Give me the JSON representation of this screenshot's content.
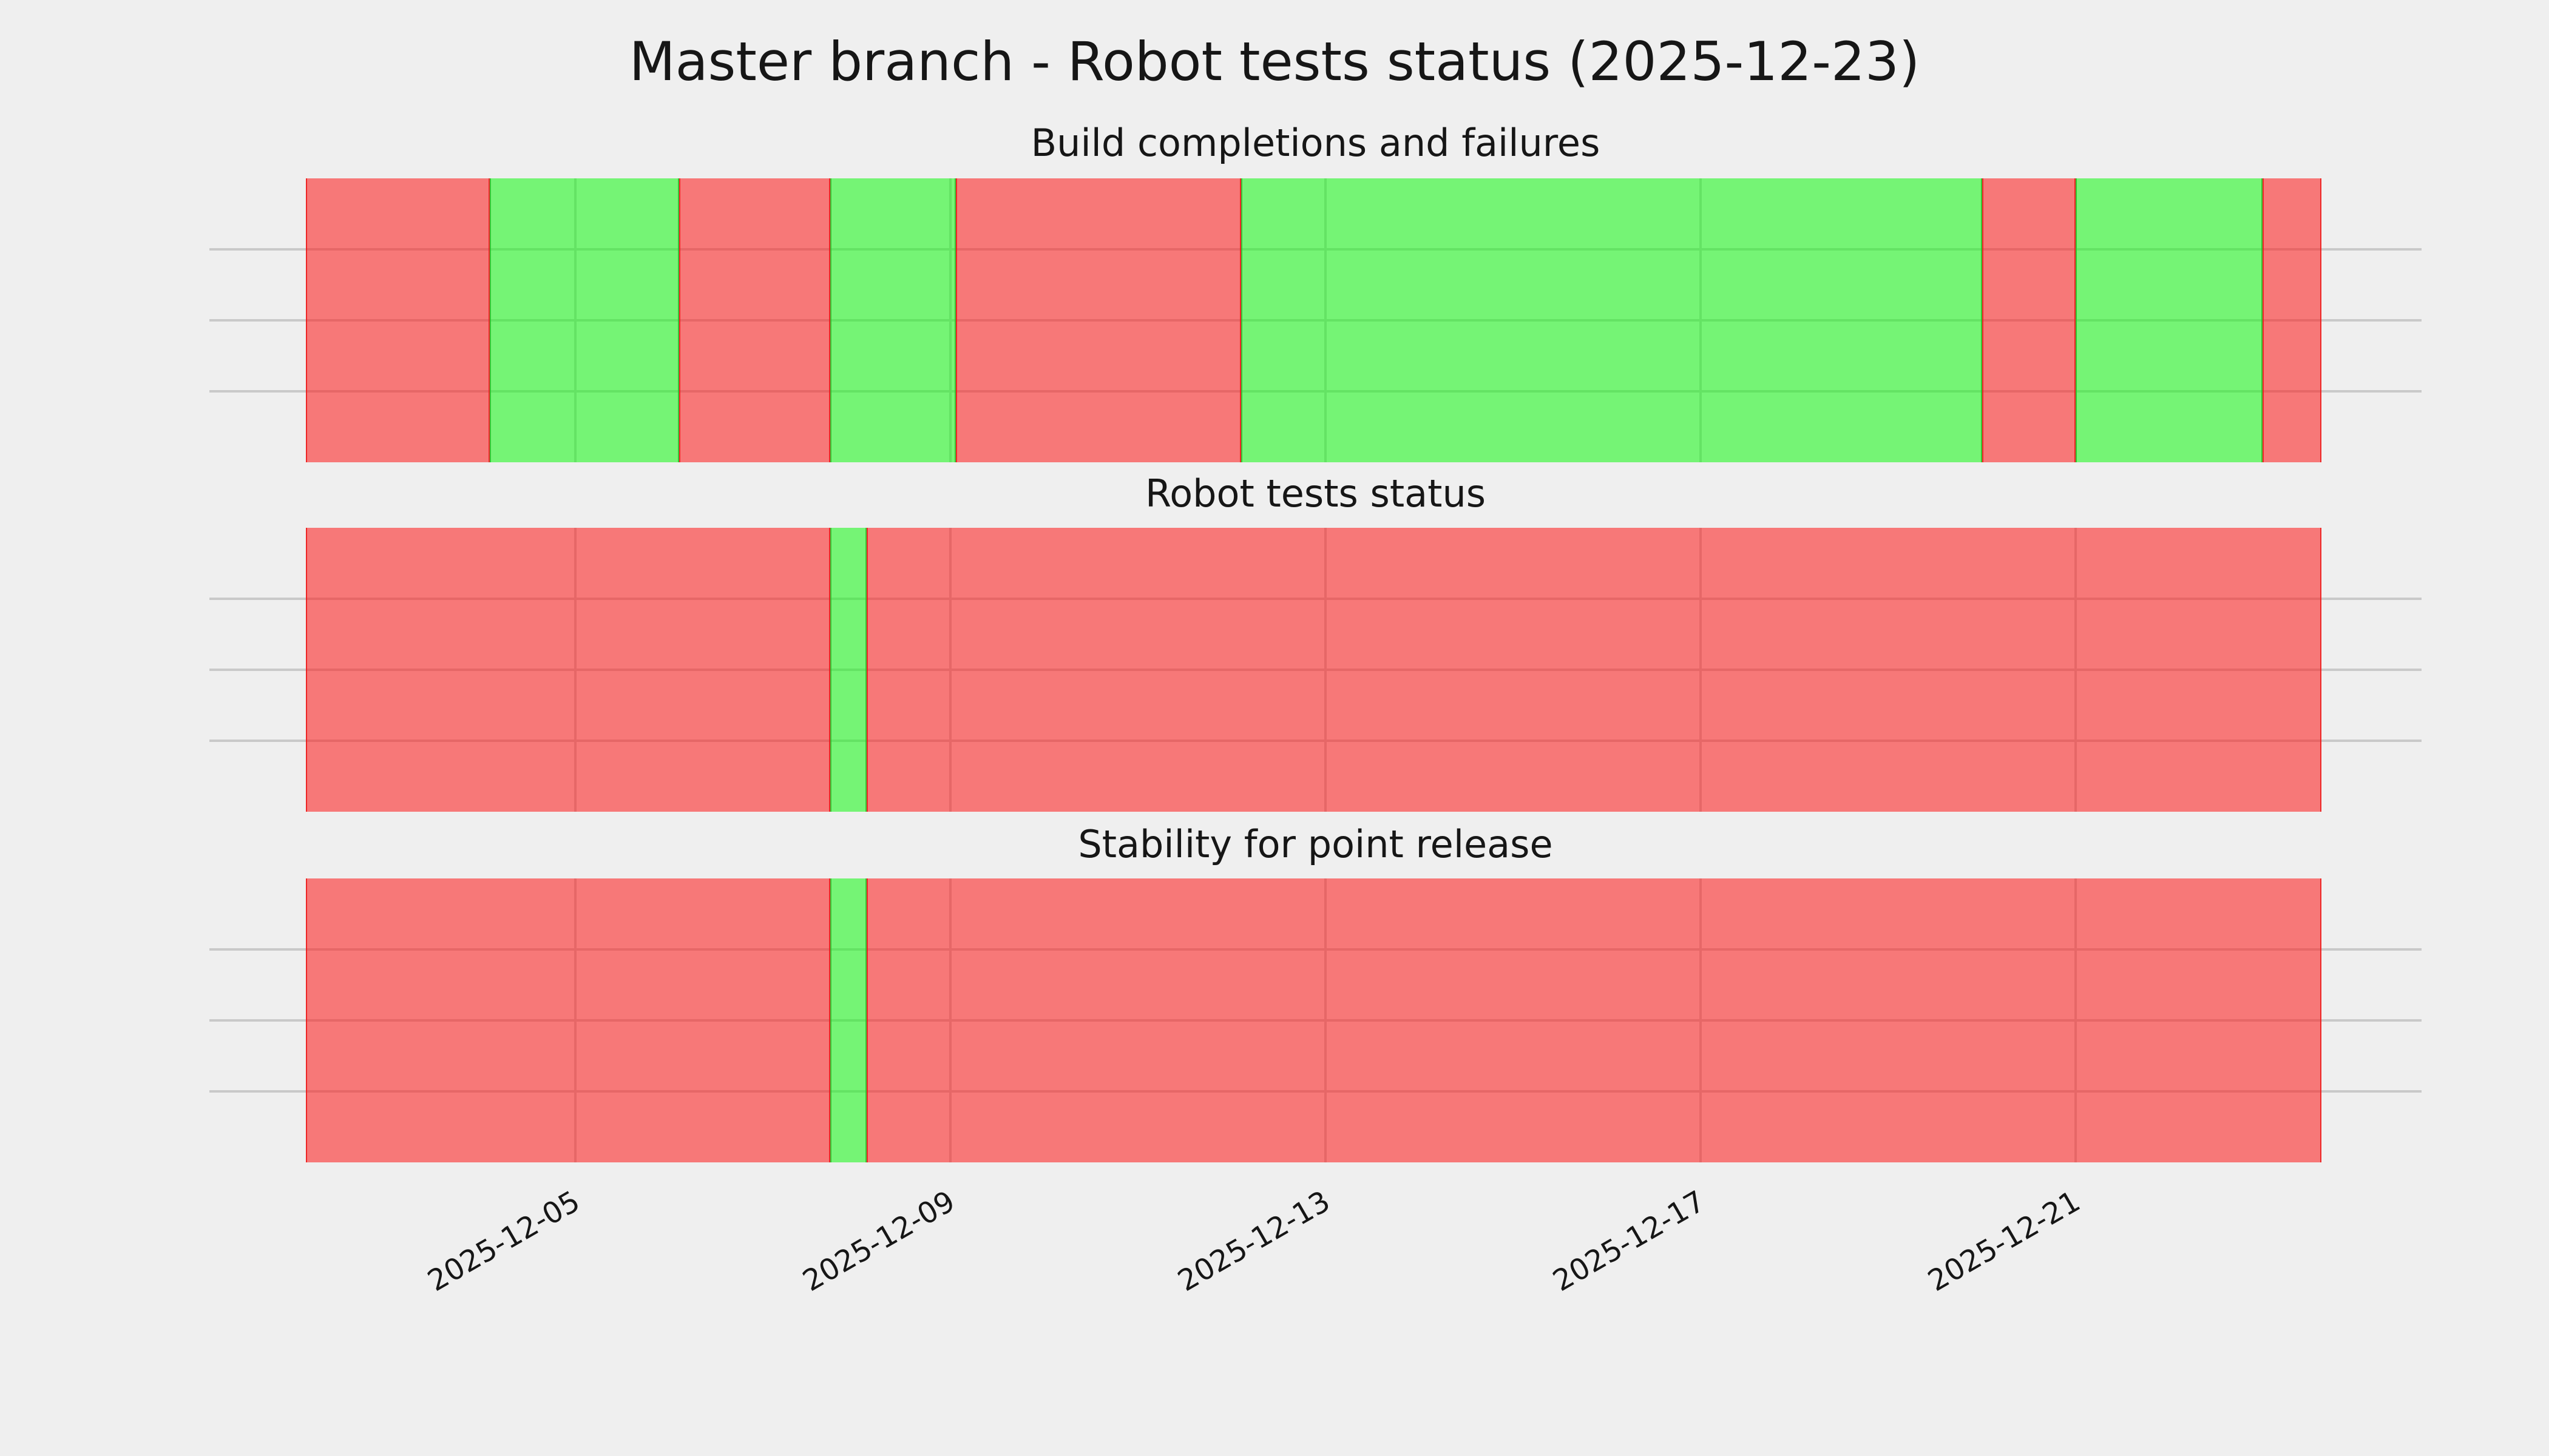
{
  "figure": {
    "title": "Master branch - Robot tests status (2025-12-23)",
    "background_color": "#efefef",
    "text_color": "#161616",
    "gridline_color": "#c9c9c9",
    "status_colors": {
      "success": "#71f071",
      "failure": "#f47170"
    }
  },
  "chart_data": {
    "type": "bar",
    "subtype": "status-timeline-broken-horizontal-bars",
    "title": "Master branch - Robot tests status (2025-12-23)",
    "legend": null,
    "grid": "on",
    "x_axis": {
      "unit": "date",
      "start": "2025-12-02 03:05",
      "end": "2025-12-23 14:55",
      "start_day": 2.13,
      "end_day": 23.62,
      "tick_rotation_deg": 30,
      "ticks": [
        {
          "day": 5,
          "label": "2025-12-05"
        },
        {
          "day": 9,
          "label": "2025-12-09"
        },
        {
          "day": 13,
          "label": "2025-12-13"
        },
        {
          "day": 17,
          "label": "2025-12-17"
        },
        {
          "day": 21,
          "label": "2025-12-21"
        }
      ]
    },
    "y_axis": {
      "tick_labels": [],
      "horizontal_gridlines_per_panel": 3
    },
    "panels": [
      {
        "title": "Build completions and failures",
        "segments": [
          {
            "status": "failure",
            "start": "2025-12-02 03:05",
            "end": "2025-12-04 02:10",
            "start_day": 2.13,
            "end_day": 4.09
          },
          {
            "status": "success",
            "start": "2025-12-04 02:10",
            "end": "2025-12-06 02:40",
            "start_day": 4.09,
            "end_day": 6.11
          },
          {
            "status": "failure",
            "start": "2025-12-06 02:40",
            "end": "2025-12-07 17:15",
            "start_day": 6.11,
            "end_day": 7.72
          },
          {
            "status": "success",
            "start": "2025-12-07 17:15",
            "end": "2025-12-09 01:25",
            "start_day": 7.72,
            "end_day": 9.06
          },
          {
            "status": "failure",
            "start": "2025-12-09 01:25",
            "end": "2025-12-12 02:25",
            "start_day": 9.06,
            "end_day": 12.1
          },
          {
            "status": "success",
            "start": "2025-12-12 02:25",
            "end": "2025-12-20 00:00",
            "start_day": 12.1,
            "end_day": 20.0
          },
          {
            "status": "failure",
            "start": "2025-12-20 00:00",
            "end": "2025-12-21 00:00",
            "start_day": 20.0,
            "end_day": 21.0
          },
          {
            "status": "success",
            "start": "2025-12-21 00:00",
            "end": "2025-12-22 23:45",
            "start_day": 21.0,
            "end_day": 22.99
          },
          {
            "status": "failure",
            "start": "2025-12-22 23:45",
            "end": "2025-12-23 14:55",
            "start_day": 22.99,
            "end_day": 23.62
          }
        ]
      },
      {
        "title": "Robot tests status",
        "segments": [
          {
            "status": "failure",
            "start": "2025-12-02 03:05",
            "end": "2025-12-07 17:15",
            "start_day": 2.13,
            "end_day": 7.72
          },
          {
            "status": "success",
            "start": "2025-12-07 17:15",
            "end": "2025-12-08 02:40",
            "start_day": 7.72,
            "end_day": 8.11
          },
          {
            "status": "failure",
            "start": "2025-12-08 02:40",
            "end": "2025-12-23 14:55",
            "start_day": 8.11,
            "end_day": 23.62
          }
        ]
      },
      {
        "title": "Stability for point release",
        "segments": [
          {
            "status": "failure",
            "start": "2025-12-02 03:05",
            "end": "2025-12-07 17:15",
            "start_day": 2.13,
            "end_day": 7.72
          },
          {
            "status": "success",
            "start": "2025-12-07 17:15",
            "end": "2025-12-08 02:40",
            "start_day": 7.72,
            "end_day": 8.11
          },
          {
            "status": "failure",
            "start": "2025-12-08 02:40",
            "end": "2025-12-23 14:55",
            "start_day": 8.11,
            "end_day": 23.62
          }
        ]
      }
    ]
  }
}
